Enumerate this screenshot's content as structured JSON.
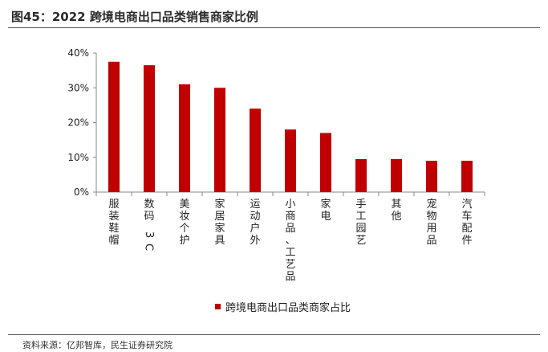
{
  "header": {
    "title": "图45：2022 跨境电商出口品类销售商家比例"
  },
  "footer": {
    "source": "资料来源：亿邦智库，民生证券研究院"
  },
  "colors": {
    "bar": "#c00000",
    "axis": "#888888",
    "rule": "#555555"
  },
  "chart_data": {
    "type": "bar",
    "categories": [
      "服装鞋帽",
      "数码3C",
      "美妆个护",
      "家居家具",
      "运动户外",
      "小商品、工艺品",
      "家电",
      "手工园艺",
      "其他",
      "宠物用品",
      "汽车配件"
    ],
    "series": [
      {
        "name": "跨境电商出口品类商家占比",
        "values": [
          37.5,
          36.5,
          31.0,
          30.0,
          24.0,
          18.0,
          17.0,
          9.5,
          9.5,
          9.0,
          9.0
        ]
      }
    ],
    "ylim": [
      0,
      40
    ],
    "yticks": [
      0,
      10,
      20,
      30,
      40
    ],
    "ytick_labels": [
      "0%",
      "10%",
      "20%",
      "30%",
      "40%"
    ],
    "grid": false,
    "legend_position": "bottom"
  }
}
